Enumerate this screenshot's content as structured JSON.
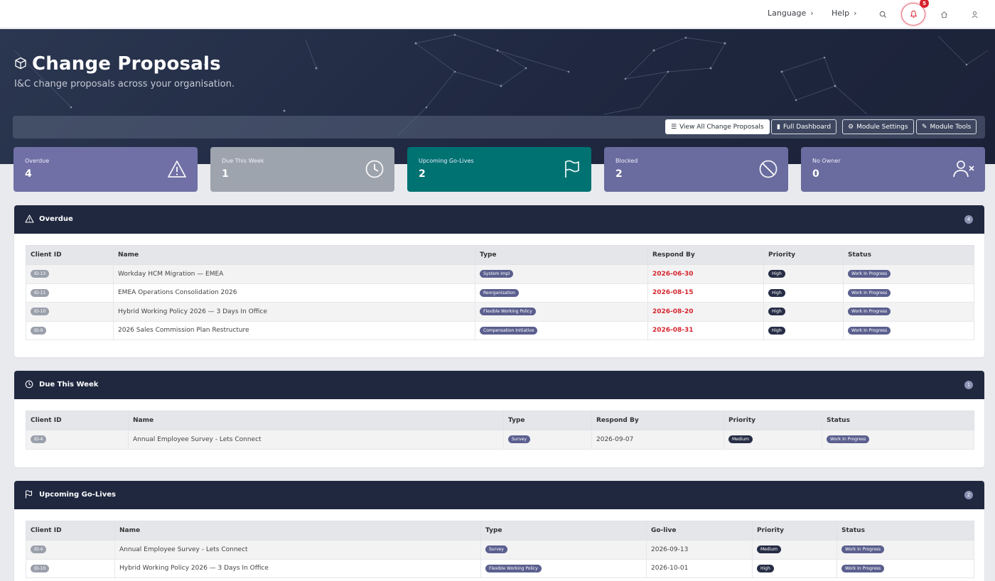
{
  "nav": {
    "language": "Language",
    "help": "Help",
    "notification_count": "5"
  },
  "hero": {
    "title": "Change Proposals",
    "subtitle": "I&C change proposals across your organisation.",
    "buttons": {
      "view_all": "View All Change Proposals",
      "dashboard": "Full Dashboard",
      "settings": "Module Settings",
      "tools": "Module Tools"
    }
  },
  "stats": [
    {
      "label": "Overdue",
      "value": "4",
      "color": "#7070a6",
      "icon": "warning-icon"
    },
    {
      "label": "Due This Week",
      "value": "1",
      "color": "#9ea4ad",
      "icon": "clock-icon"
    },
    {
      "label": "Upcoming Go-Lives",
      "value": "2",
      "color": "#007272",
      "icon": "flag-icon"
    },
    {
      "label": "Blocked",
      "value": "2",
      "color": "#6a6b9e",
      "icon": "blocked-icon"
    },
    {
      "label": "No Owner",
      "value": "0",
      "color": "#6a6b9e",
      "icon": "user-x-icon"
    }
  ],
  "overdue": {
    "title": "Overdue",
    "count": "4",
    "columns": [
      "Client ID",
      "Name",
      "Type",
      "Respond By",
      "Priority",
      "Status"
    ],
    "rows": [
      {
        "id": "ID-13",
        "name": "Workday HCM Migration — EMEA",
        "type": "System Impl",
        "date": "2026-06-30",
        "priority": "High",
        "status": "Work In Progress"
      },
      {
        "id": "ID-11",
        "name": "EMEA Operations Consolidation 2026",
        "type": "Reorganisation",
        "date": "2026-08-15",
        "priority": "High",
        "status": "Work In Progress"
      },
      {
        "id": "ID-10",
        "name": "Hybrid Working Policy 2026 — 3 Days In Office",
        "type": "Flexible Working Policy",
        "date": "2026-08-20",
        "priority": "High",
        "status": "Work In Progress"
      },
      {
        "id": "ID-9",
        "name": "2026 Sales Commission Plan Restructure",
        "type": "Compensation Initiative",
        "date": "2026-08-31",
        "priority": "High",
        "status": "Work In Progress"
      }
    ]
  },
  "due_week": {
    "title": "Due This Week",
    "count": "1",
    "columns": [
      "Client ID",
      "Name",
      "Type",
      "Respond By",
      "Priority",
      "Status"
    ],
    "rows": [
      {
        "id": "ID-4",
        "name": "Annual Employee Survey - Lets Connect",
        "type": "Survey",
        "date": "2026-09-07",
        "priority": "Medium",
        "status": "Work In Progress"
      }
    ]
  },
  "golives": {
    "title": "Upcoming Go-Lives",
    "count": "2",
    "columns": [
      "Client ID",
      "Name",
      "Type",
      "Go-live",
      "Priority",
      "Status"
    ],
    "rows": [
      {
        "id": "ID-4",
        "name": "Annual Employee Survey - Lets Connect",
        "type": "Survey",
        "date": "2026-09-13",
        "priority": "Medium",
        "status": "Work In Progress"
      },
      {
        "id": "ID-10",
        "name": "Hybrid Working Policy 2026 — 3 Days In Office",
        "type": "Flexible Working Policy",
        "date": "2026-10-01",
        "priority": "High",
        "status": "Work In Progress"
      }
    ]
  }
}
